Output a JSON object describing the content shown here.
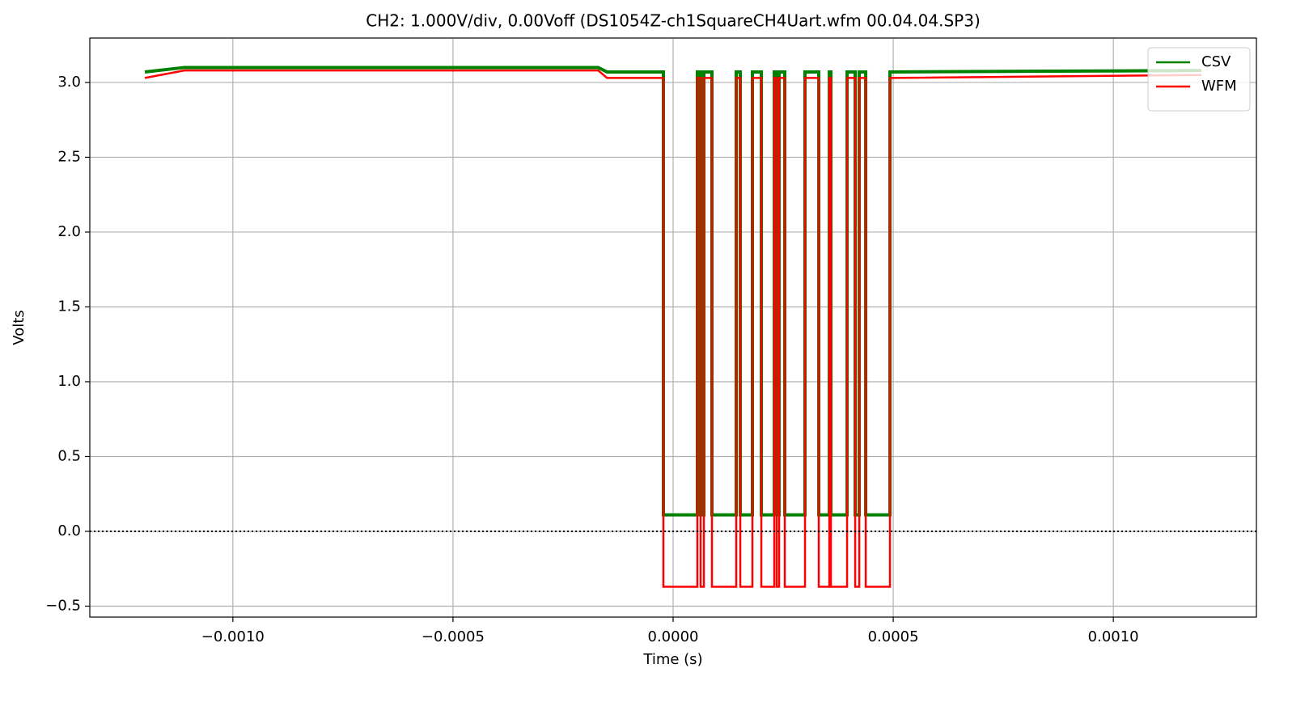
{
  "chart_data": {
    "type": "line",
    "title": "CH2: 1.000V/div, 0.00Voff (DS1054Z-ch1SquareCH4Uart.wfm 00.04.04.SP3)",
    "x_label": "Time (s)",
    "y_label": "Volts",
    "x": [
      -0.0012,
      -0.00111,
      -0.00017,
      -0.00015,
      -2.21e-05,
      -2.21e-05,
      5.51e-05,
      5.51e-05,
      6.25e-05,
      6.25e-05,
      6.99e-05,
      6.99e-05,
      8.82e-05,
      8.82e-05,
      0.0001434,
      0.0001434,
      0.0001526,
      0.0001526,
      0.0001801,
      0.0001801,
      0.0002004,
      0.0002004,
      0.0002298,
      0.0002298,
      0.0002353,
      0.0002353,
      0.0002408,
      0.0002408,
      0.0002537,
      0.0002537,
      0.0002996,
      0.0002996,
      0.0003309,
      0.0003309,
      0.0003548,
      0.0003548,
      0.0003585,
      0.0003585,
      0.0003952,
      0.0003952,
      0.0004136,
      0.0004136,
      0.0004228,
      0.0004228,
      0.0004375,
      0.0004375,
      0.0004926,
      0.0004926,
      0.0012
    ],
    "series": [
      {
        "name": "CSV",
        "color": "#008000",
        "values": [
          3.07,
          3.1,
          3.1,
          3.07,
          3.07,
          0.11,
          0.11,
          3.07,
          3.07,
          0.11,
          0.11,
          3.07,
          3.07,
          0.11,
          0.11,
          3.07,
          3.07,
          0.11,
          0.11,
          3.07,
          3.07,
          0.11,
          0.11,
          3.07,
          3.07,
          0.11,
          0.11,
          3.07,
          3.07,
          0.11,
          0.11,
          3.07,
          3.07,
          0.11,
          0.11,
          3.07,
          3.07,
          0.11,
          0.11,
          3.07,
          3.07,
          0.11,
          0.11,
          3.07,
          3.07,
          0.11,
          0.11,
          3.07,
          3.08
        ]
      },
      {
        "name": "WFM",
        "color": "#ff0000",
        "values": [
          3.03,
          3.08,
          3.08,
          3.03,
          3.03,
          -0.37,
          -0.37,
          3.03,
          3.03,
          -0.37,
          -0.37,
          3.03,
          3.03,
          -0.37,
          -0.37,
          3.03,
          3.03,
          -0.37,
          -0.37,
          3.03,
          3.03,
          -0.37,
          -0.37,
          3.03,
          3.03,
          -0.37,
          -0.37,
          3.03,
          3.03,
          -0.37,
          -0.37,
          3.03,
          3.03,
          -0.37,
          -0.37,
          3.03,
          3.03,
          -0.37,
          -0.37,
          3.03,
          3.03,
          -0.37,
          -0.37,
          3.03,
          3.03,
          -0.37,
          -0.37,
          3.03,
          3.05
        ]
      }
    ],
    "reference_line": {
      "y": 0,
      "style": "dotted",
      "color": "#000000"
    },
    "xlim": [
      -0.001325,
      0.001325
    ],
    "xticks": [
      {
        "value": -0.001,
        "label": "−0.0010"
      },
      {
        "value": -0.0005,
        "label": "−0.0005"
      },
      {
        "value": 0,
        "label": "0.0000"
      },
      {
        "value": 0.0005,
        "label": "0.0005"
      },
      {
        "value": 0.001,
        "label": "0.0010"
      }
    ],
    "ylim": [
      -0.573,
      3.297
    ],
    "yticks": [
      {
        "value": -0.5,
        "label": "−0.5"
      },
      {
        "value": 0,
        "label": "0.0"
      },
      0.5,
      {
        "value": 1,
        "label": "1.0"
      },
      1.5,
      {
        "value": 2,
        "label": "2.0"
      },
      2.5,
      {
        "value": 3,
        "label": "3.0"
      }
    ],
    "grid": true,
    "legend": "upper right"
  }
}
